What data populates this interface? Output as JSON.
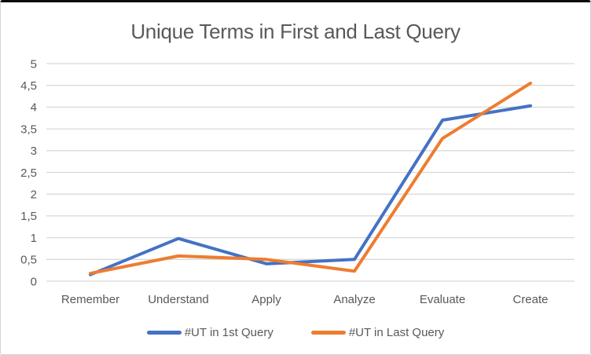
{
  "chart_data": {
    "type": "line",
    "title": "Unique Terms in First and Last Query",
    "categories": [
      "Remember",
      "Understand",
      "Apply",
      "Analyze",
      "Evaluate",
      "Create"
    ],
    "series": [
      {
        "name": "#UT in 1st Query",
        "color": "#4472C4",
        "values": [
          0.15,
          0.98,
          0.4,
          0.5,
          3.7,
          4.03
        ]
      },
      {
        "name": "#UT in Last Query",
        "color": "#ED7D31",
        "values": [
          0.18,
          0.58,
          0.5,
          0.23,
          3.28,
          4.55
        ]
      }
    ],
    "xlabel": "",
    "ylabel": "",
    "ylim": [
      0,
      5
    ],
    "ytick_step": 0.5,
    "ytick_labels": [
      "0",
      "0,5",
      "1",
      "1,5",
      "2",
      "2,5",
      "3",
      "3,5",
      "4",
      "4,5",
      "5"
    ],
    "grid": true,
    "legend_position": "bottom",
    "colors": {
      "gridline": "#d9d9d9",
      "text": "#595959",
      "background": "#ffffff",
      "frame_top_border": "#0b0b0b"
    }
  }
}
